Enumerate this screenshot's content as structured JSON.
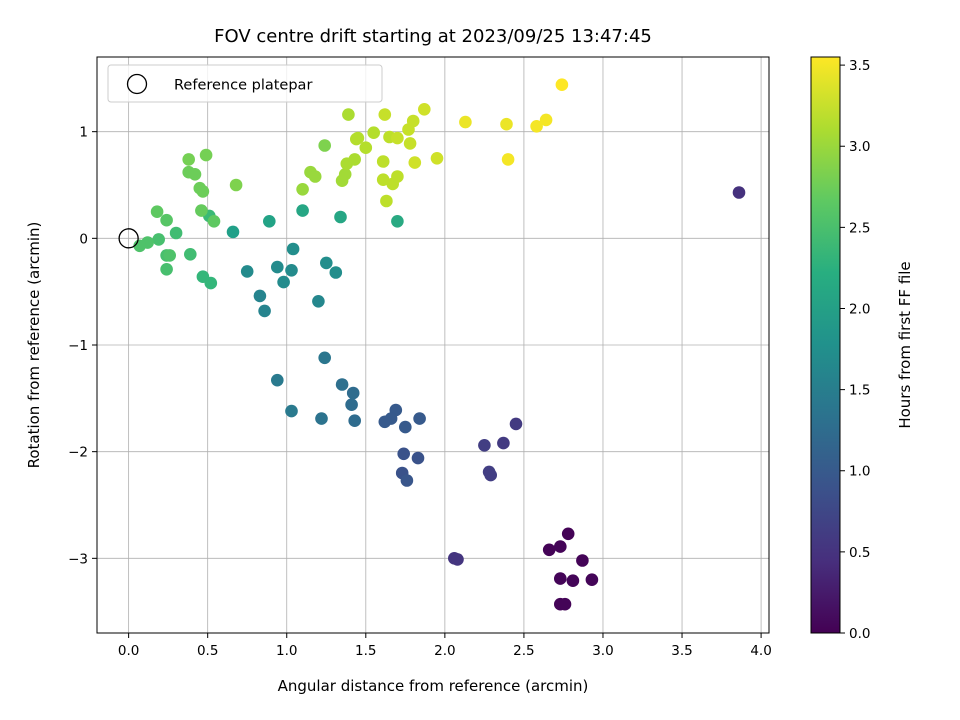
{
  "chart_data": {
    "type": "scatter",
    "title": "FOV centre drift starting at 2023/09/25 13:47:45",
    "xlabel": "Angular distance from reference (arcmin)",
    "ylabel": "Rotation from reference (arcmin)",
    "xlim": [
      -0.2,
      4.05
    ],
    "ylim": [
      -3.7,
      1.7
    ],
    "xticks": [
      0.0,
      0.5,
      1.0,
      1.5,
      2.0,
      2.5,
      3.0,
      3.5,
      4.0
    ],
    "xtick_labels": [
      "0.0",
      "0.5",
      "1.0",
      "1.5",
      "2.0",
      "2.5",
      "3.0",
      "3.5",
      "4.0"
    ],
    "yticks": [
      -3,
      -2,
      -1,
      0,
      1
    ],
    "ytick_labels": [
      "−3",
      "−2",
      "−1",
      "0",
      "1"
    ],
    "grid": true,
    "colormap": "viridis",
    "colorbar": {
      "label": "Hours from first FF file",
      "min": 0.0,
      "max": 3.55,
      "ticks": [
        0.0,
        0.5,
        1.0,
        1.5,
        2.0,
        2.5,
        3.0,
        3.5
      ],
      "tick_labels": [
        "0.0",
        "0.5",
        "1.0",
        "1.5",
        "2.0",
        "2.5",
        "3.0",
        "3.5"
      ]
    },
    "legend": {
      "placement": "top-left",
      "entries": [
        {
          "label": "Reference platepar",
          "marker": "open-circle"
        }
      ]
    },
    "reference_point": {
      "x": 0.0,
      "y": 0.0
    },
    "series": [
      {
        "points": [
          {
            "x": 2.78,
            "y": -2.77,
            "c": 0.02
          },
          {
            "x": 2.66,
            "y": -2.92,
            "c": 0.02
          },
          {
            "x": 2.73,
            "y": -2.89,
            "c": 0.03
          },
          {
            "x": 2.87,
            "y": -3.02,
            "c": 0.03
          },
          {
            "x": 2.73,
            "y": -3.19,
            "c": 0.04
          },
          {
            "x": 2.81,
            "y": -3.21,
            "c": 0.04
          },
          {
            "x": 2.93,
            "y": -3.2,
            "c": 0.04
          },
          {
            "x": 2.73,
            "y": -3.43,
            "c": 0.03
          },
          {
            "x": 2.76,
            "y": -3.43,
            "c": 0.03
          },
          {
            "x": 3.86,
            "y": 0.43,
            "c": 0.5
          },
          {
            "x": 2.06,
            "y": -3.0,
            "c": 0.55
          },
          {
            "x": 2.08,
            "y": -3.01,
            "c": 0.55
          },
          {
            "x": 2.45,
            "y": -1.74,
            "c": 0.6
          },
          {
            "x": 2.37,
            "y": -1.92,
            "c": 0.6
          },
          {
            "x": 2.25,
            "y": -1.94,
            "c": 0.65
          },
          {
            "x": 2.28,
            "y": -2.19,
            "c": 0.65
          },
          {
            "x": 2.29,
            "y": -2.22,
            "c": 0.65
          },
          {
            "x": 1.74,
            "y": -2.02,
            "c": 0.9
          },
          {
            "x": 1.83,
            "y": -2.06,
            "c": 0.9
          },
          {
            "x": 1.73,
            "y": -2.2,
            "c": 0.9
          },
          {
            "x": 1.76,
            "y": -2.27,
            "c": 0.95
          },
          {
            "x": 1.69,
            "y": -1.61,
            "c": 1.0
          },
          {
            "x": 1.66,
            "y": -1.69,
            "c": 1.0
          },
          {
            "x": 1.62,
            "y": -1.72,
            "c": 1.0
          },
          {
            "x": 1.75,
            "y": -1.77,
            "c": 1.0
          },
          {
            "x": 1.84,
            "y": -1.69,
            "c": 1.0
          },
          {
            "x": 1.42,
            "y": -1.45,
            "c": 1.25
          },
          {
            "x": 1.41,
            "y": -1.56,
            "c": 1.25
          },
          {
            "x": 1.43,
            "y": -1.71,
            "c": 1.25
          },
          {
            "x": 1.35,
            "y": -1.37,
            "c": 1.3
          },
          {
            "x": 1.22,
            "y": -1.69,
            "c": 1.35
          },
          {
            "x": 1.24,
            "y": -1.12,
            "c": 1.4
          },
          {
            "x": 0.94,
            "y": -1.33,
            "c": 1.45
          },
          {
            "x": 1.03,
            "y": -1.62,
            "c": 1.45
          },
          {
            "x": 0.86,
            "y": -0.68,
            "c": 1.6
          },
          {
            "x": 0.83,
            "y": -0.54,
            "c": 1.6
          },
          {
            "x": 1.2,
            "y": -0.59,
            "c": 1.65
          },
          {
            "x": 0.75,
            "y": -0.31,
            "c": 1.7
          },
          {
            "x": 0.98,
            "y": -0.41,
            "c": 1.7
          },
          {
            "x": 0.94,
            "y": -0.27,
            "c": 1.7
          },
          {
            "x": 1.03,
            "y": -0.3,
            "c": 1.7
          },
          {
            "x": 1.04,
            "y": -0.1,
            "c": 1.75
          },
          {
            "x": 1.25,
            "y": -0.23,
            "c": 1.75
          },
          {
            "x": 1.31,
            "y": -0.32,
            "c": 1.75
          },
          {
            "x": 0.66,
            "y": 0.06,
            "c": 2.0
          },
          {
            "x": 0.89,
            "y": 0.16,
            "c": 2.05
          },
          {
            "x": 1.1,
            "y": 0.26,
            "c": 2.1
          },
          {
            "x": 1.34,
            "y": 0.2,
            "c": 2.1
          },
          {
            "x": 1.7,
            "y": 0.16,
            "c": 2.15
          },
          {
            "x": 0.47,
            "y": -0.36,
            "c": 2.35
          },
          {
            "x": 0.52,
            "y": -0.42,
            "c": 2.35
          },
          {
            "x": 0.51,
            "y": 0.21,
            "c": 2.4
          },
          {
            "x": 0.39,
            "y": -0.15,
            "c": 2.45
          },
          {
            "x": 0.3,
            "y": 0.05,
            "c": 2.45
          },
          {
            "x": 0.24,
            "y": -0.16,
            "c": 2.5
          },
          {
            "x": 0.24,
            "y": -0.29,
            "c": 2.5
          },
          {
            "x": 0.19,
            "y": -0.01,
            "c": 2.5
          },
          {
            "x": 0.12,
            "y": -0.04,
            "c": 2.55
          },
          {
            "x": 0.07,
            "y": -0.07,
            "c": 2.55
          },
          {
            "x": 0.26,
            "y": -0.16,
            "c": 2.55
          },
          {
            "x": 0.24,
            "y": 0.17,
            "c": 2.6
          },
          {
            "x": 0.18,
            "y": 0.25,
            "c": 2.65
          },
          {
            "x": 0.54,
            "y": 0.16,
            "c": 2.65
          },
          {
            "x": 0.46,
            "y": 0.26,
            "c": 2.7
          },
          {
            "x": 0.45,
            "y": 0.47,
            "c": 2.75
          },
          {
            "x": 0.47,
            "y": 0.44,
            "c": 2.75
          },
          {
            "x": 0.38,
            "y": 0.62,
            "c": 2.75
          },
          {
            "x": 0.42,
            "y": 0.6,
            "c": 2.75
          },
          {
            "x": 0.38,
            "y": 0.74,
            "c": 2.8
          },
          {
            "x": 0.49,
            "y": 0.78,
            "c": 2.8
          },
          {
            "x": 0.68,
            "y": 0.5,
            "c": 2.85
          },
          {
            "x": 1.24,
            "y": 0.87,
            "c": 2.85
          },
          {
            "x": 1.1,
            "y": 0.46,
            "c": 3.0
          },
          {
            "x": 1.15,
            "y": 0.62,
            "c": 3.0
          },
          {
            "x": 1.18,
            "y": 0.58,
            "c": 3.0
          },
          {
            "x": 1.35,
            "y": 0.54,
            "c": 3.05
          },
          {
            "x": 1.37,
            "y": 0.6,
            "c": 3.05
          },
          {
            "x": 1.38,
            "y": 0.7,
            "c": 3.1
          },
          {
            "x": 1.43,
            "y": 0.74,
            "c": 3.1
          },
          {
            "x": 1.39,
            "y": 1.16,
            "c": 3.1
          },
          {
            "x": 1.44,
            "y": 0.93,
            "c": 3.15
          },
          {
            "x": 1.45,
            "y": 0.94,
            "c": 3.15
          },
          {
            "x": 1.5,
            "y": 0.85,
            "c": 3.15
          },
          {
            "x": 1.55,
            "y": 0.99,
            "c": 3.15
          },
          {
            "x": 1.61,
            "y": 0.72,
            "c": 3.2
          },
          {
            "x": 1.61,
            "y": 0.55,
            "c": 3.2
          },
          {
            "x": 1.63,
            "y": 0.35,
            "c": 3.2
          },
          {
            "x": 1.67,
            "y": 0.51,
            "c": 3.2
          },
          {
            "x": 1.7,
            "y": 0.58,
            "c": 3.2
          },
          {
            "x": 1.65,
            "y": 0.95,
            "c": 3.2
          },
          {
            "x": 1.7,
            "y": 0.94,
            "c": 3.25
          },
          {
            "x": 1.62,
            "y": 1.16,
            "c": 3.25
          },
          {
            "x": 1.77,
            "y": 1.02,
            "c": 3.25
          },
          {
            "x": 1.78,
            "y": 0.89,
            "c": 3.25
          },
          {
            "x": 1.8,
            "y": 1.1,
            "c": 3.25
          },
          {
            "x": 1.81,
            "y": 0.71,
            "c": 3.3
          },
          {
            "x": 1.95,
            "y": 0.75,
            "c": 3.3
          },
          {
            "x": 1.87,
            "y": 1.21,
            "c": 3.3
          },
          {
            "x": 2.13,
            "y": 1.09,
            "c": 3.45
          },
          {
            "x": 2.39,
            "y": 1.07,
            "c": 3.45
          },
          {
            "x": 2.4,
            "y": 0.74,
            "c": 3.5
          },
          {
            "x": 2.58,
            "y": 1.05,
            "c": 3.5
          },
          {
            "x": 2.64,
            "y": 1.11,
            "c": 3.5
          },
          {
            "x": 2.74,
            "y": 1.44,
            "c": 3.55
          }
        ]
      }
    ]
  }
}
